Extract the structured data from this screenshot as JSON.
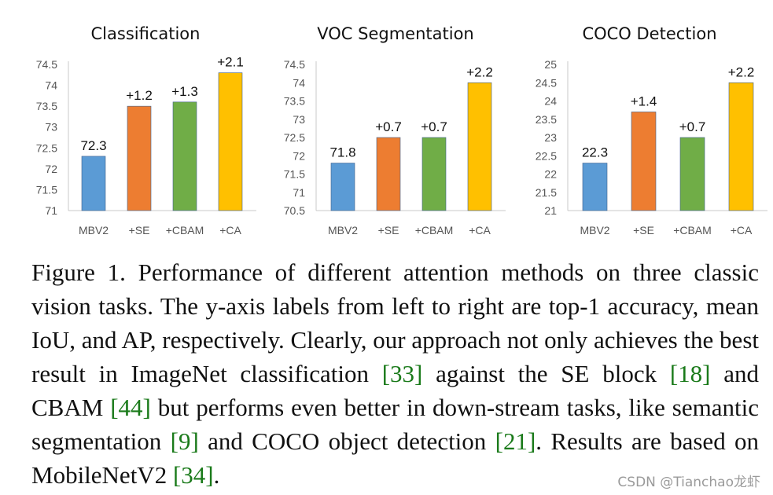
{
  "chart_data": [
    {
      "type": "bar",
      "title": "Classification",
      "categories": [
        "MBV2",
        "+SE",
        "+CBAM",
        "+CA"
      ],
      "values": [
        72.3,
        73.5,
        73.6,
        74.3
      ],
      "data_labels": [
        "72.3",
        "+1.2",
        "+1.3",
        "+2.1"
      ],
      "ylim": [
        71,
        74.5
      ],
      "yticks": [
        "71",
        "71.5",
        "72",
        "72.5",
        "73",
        "73.5",
        "74",
        "74.5"
      ],
      "xlabel": "",
      "ylabel": ""
    },
    {
      "type": "bar",
      "title": "VOC Segmentation",
      "categories": [
        "MBV2",
        "+SE",
        "+CBAM",
        "+CA"
      ],
      "values": [
        71.8,
        72.5,
        72.5,
        74.0
      ],
      "data_labels": [
        "71.8",
        "+0.7",
        "+0.7",
        "+2.2"
      ],
      "ylim": [
        70.5,
        74.5
      ],
      "yticks": [
        "70.5",
        "71",
        "71.5",
        "72",
        "72.5",
        "73",
        "73.5",
        "74",
        "74.5"
      ],
      "xlabel": "",
      "ylabel": ""
    },
    {
      "type": "bar",
      "title": "COCO Detection",
      "categories": [
        "MBV2",
        "+SE",
        "+CBAM",
        "+CA"
      ],
      "values": [
        22.3,
        23.7,
        23.0,
        24.5
      ],
      "data_labels": [
        "22.3",
        "+1.4",
        "+0.7",
        "+2.2"
      ],
      "ylim": [
        21,
        25
      ],
      "yticks": [
        "21",
        "21.5",
        "22",
        "22.5",
        "23",
        "23.5",
        "24",
        "24.5",
        "25"
      ],
      "xlabel": "",
      "ylabel": ""
    }
  ],
  "colors": {
    "MBV2": "#5b9bd5",
    "SE": "#ed7d31",
    "CBAM": "#70ad47",
    "CA": "#ffc000"
  },
  "caption": {
    "prefix": "Figure 1. Performance of different attention methods on three classic vision tasks. The y-axis labels from left to right are top-1 accuracy, mean IoU, and AP, respectively. Clearly, our approach not only achieves the best result in ImageNet classification ",
    "ref1": "[33]",
    "mid1": " against the SE block ",
    "ref2": "[18]",
    "mid2": " and CBAM ",
    "ref3": "[44]",
    "mid3": " but performs even better in down-stream tasks, like semantic segmentation ",
    "ref4": "[9]",
    "mid4": " and COCO object detection ",
    "ref5": "[21]",
    "suffix": ". Results are based on MobileNetV2 ",
    "ref6": "[34]",
    "end": "."
  },
  "watermark": "CSDN @Tianchao龙虾"
}
